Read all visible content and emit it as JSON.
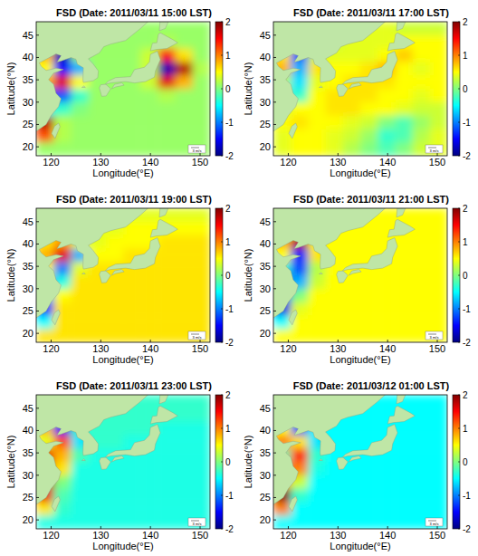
{
  "chart_data": [
    {
      "type": "heatmap",
      "title": "FSD (Date: 2011/03/11 15:00 LST)",
      "x_label": "Longitude(°E)",
      "y_label": "Latitude(°N)",
      "xlim": [
        117,
        152
      ],
      "ylim": [
        18,
        48
      ],
      "xticks": [
        120,
        130,
        140,
        150
      ],
      "yticks": [
        20,
        25,
        30,
        35,
        40,
        45
      ],
      "x": [
        118.75,
        122.25,
        125.75,
        129.25,
        132.75,
        136.25,
        139.75,
        143.25,
        146.75,
        150.25
      ],
      "y": [
        46.5,
        43.5,
        40.5,
        37.5,
        34.5,
        31.5,
        28.5,
        25.5,
        22.5,
        19.5
      ],
      "cells": [
        [
          0.1,
          0.1,
          0.1,
          0.1,
          0.1,
          0.1,
          0.1,
          0.1,
          0.1,
          0.1
        ],
        [
          0.1,
          0.1,
          0.1,
          0.1,
          0.1,
          0.1,
          0.1,
          0.2,
          0.1,
          0.1
        ],
        [
          0.8,
          -1.8,
          0.1,
          0.1,
          0.1,
          0.1,
          0.3,
          1.5,
          0.6,
          0.1
        ],
        [
          0.5,
          -1.5,
          -0.8,
          0.1,
          0.1,
          0.1,
          0.3,
          -1.8,
          1.8,
          0.2
        ],
        [
          0.8,
          1.6,
          0.5,
          0.1,
          0.1,
          0.1,
          0.3,
          1.6,
          0.8,
          0.1
        ],
        [
          -1.5,
          -1.2,
          -0.3,
          0.1,
          0.1,
          0.1,
          0.1,
          0.2,
          0.1,
          0.1
        ],
        [
          -0.5,
          -0.3,
          0,
          0.1,
          0.1,
          0.1,
          0.1,
          0.1,
          0.1,
          0.1
        ],
        [
          1.8,
          0.2,
          0.1,
          0.1,
          0.1,
          0.1,
          0.1,
          0.1,
          0.1,
          0.1
        ],
        [
          1.2,
          0.2,
          0.1,
          0.1,
          0.1,
          0.1,
          0.1,
          0.1,
          0.1,
          0.1
        ],
        [
          0.1,
          0.1,
          0.1,
          0.1,
          0.1,
          0.1,
          0.1,
          0.1,
          0.1,
          0.1
        ]
      ],
      "colorbar": {
        "range": [
          -2,
          2
        ],
        "ticks": [
          -2,
          -1,
          0,
          1,
          2
        ]
      },
      "annotations": [
        "3 m/s"
      ]
    },
    {
      "type": "heatmap",
      "title": "FSD (Date: 2011/03/11 17:00 LST)",
      "x_label": "Longitude(°E)",
      "y_label": "Latitude(°N)",
      "xlim": [
        117,
        152
      ],
      "ylim": [
        18,
        48
      ],
      "xticks": [
        120,
        130,
        140,
        150
      ],
      "yticks": [
        20,
        25,
        30,
        35,
        40,
        45
      ],
      "x": [
        118.75,
        122.25,
        125.75,
        129.25,
        132.75,
        136.25,
        139.75,
        143.25,
        146.75,
        150.25
      ],
      "y": [
        46.5,
        43.5,
        40.5,
        37.5,
        34.5,
        31.5,
        28.5,
        25.5,
        22.5,
        19.5
      ],
      "cells": [
        [
          0.4,
          0.4,
          0.4,
          0.4,
          0.4,
          0.4,
          0.4,
          0.3,
          0.3,
          0.3
        ],
        [
          0.3,
          0.3,
          0.3,
          0.3,
          0.4,
          0.4,
          0.4,
          0.5,
          0.5,
          0.5
        ],
        [
          0.6,
          -1.2,
          0.3,
          0.4,
          0.4,
          0.4,
          0.5,
          0.7,
          0.5,
          0.5
        ],
        [
          0.8,
          -0.8,
          0.6,
          0.5,
          0.5,
          0.6,
          0.8,
          0.5,
          0.4,
          0.5
        ],
        [
          0.2,
          -0.6,
          0.4,
          0.5,
          0.6,
          0.6,
          0.6,
          0.5,
          0.5,
          0.5
        ],
        [
          -0.6,
          -0.3,
          0.5,
          0.6,
          0.6,
          0.6,
          0.5,
          0.5,
          0.4,
          0.5
        ],
        [
          0.3,
          0.5,
          0.5,
          0.6,
          0.6,
          0.5,
          0.5,
          0.4,
          0.3,
          0.3
        ],
        [
          0.5,
          0.6,
          0.5,
          0.5,
          0.4,
          0.3,
          0,
          -0.2,
          0.1,
          0.3
        ],
        [
          0.4,
          0.5,
          0.5,
          0.4,
          0.3,
          0.1,
          -0.3,
          -0.2,
          0.2,
          0.4
        ],
        [
          0.4,
          0.5,
          0.5,
          0.4,
          0.2,
          0,
          -0.2,
          0,
          0.3,
          0.4
        ]
      ],
      "colorbar": {
        "range": [
          -2,
          2
        ],
        "ticks": [
          -2,
          -1,
          0,
          1,
          2
        ]
      },
      "annotations": [
        "3 m/s"
      ]
    },
    {
      "type": "heatmap",
      "title": "FSD (Date: 2011/03/11 19:00 LST)",
      "x_label": "Longitude(°E)",
      "y_label": "Latitude(°N)",
      "xlim": [
        117,
        152
      ],
      "ylim": [
        18,
        48
      ],
      "xticks": [
        120,
        130,
        140,
        150
      ],
      "yticks": [
        20,
        25,
        30,
        35,
        40,
        45
      ],
      "x": [
        118.75,
        122.25,
        125.75,
        129.25,
        132.75,
        136.25,
        139.75,
        143.25,
        146.75,
        150.25
      ],
      "y": [
        46.5,
        43.5,
        40.5,
        37.5,
        34.5,
        31.5,
        28.5,
        25.5,
        22.5,
        19.5
      ],
      "cells": [
        [
          0.4,
          0.4,
          0.4,
          0.4,
          0.4,
          0.4,
          0.4,
          0.4,
          0.4,
          0.4
        ],
        [
          0.4,
          0.4,
          0.4,
          0.4,
          0.4,
          0.5,
          0.5,
          0.5,
          0.5,
          0.5
        ],
        [
          0.6,
          0.9,
          0.4,
          0.4,
          0.5,
          0.5,
          0.5,
          0.6,
          0.6,
          0.6
        ],
        [
          0.8,
          1.6,
          -0.8,
          0.5,
          0.5,
          0.6,
          0.6,
          0.6,
          0.6,
          0.6
        ],
        [
          0.5,
          -1,
          0.4,
          0.6,
          0.6,
          0.6,
          0.6,
          0.6,
          0.6,
          0.6
        ],
        [
          -1.2,
          -0.4,
          0.6,
          0.6,
          0.6,
          0.6,
          0.6,
          0.6,
          0.6,
          0.6
        ],
        [
          -0.8,
          0.5,
          0.6,
          0.6,
          0.6,
          0.6,
          0.6,
          0.6,
          0.6,
          0.6
        ],
        [
          -1.5,
          0.6,
          0.6,
          0.6,
          0.6,
          0.6,
          0.6,
          0.6,
          0.6,
          0.6
        ],
        [
          -0.5,
          0.6,
          0.6,
          0.6,
          0.6,
          0.6,
          0.6,
          0.6,
          0.6,
          0.6
        ],
        [
          0.6,
          0.6,
          0.6,
          0.6,
          0.6,
          0.6,
          0.6,
          0.6,
          0.6,
          0.6
        ]
      ],
      "colorbar": {
        "range": [
          -2,
          2
        ],
        "ticks": [
          -2,
          -1,
          0,
          1,
          2
        ]
      },
      "annotations": [
        "3 m/s"
      ]
    },
    {
      "type": "heatmap",
      "title": "FSD (Date: 2011/03/11 21:00 LST)",
      "x_label": "Longitude(°E)",
      "y_label": "Latitude(°N)",
      "xlim": [
        117,
        152
      ],
      "ylim": [
        18,
        48
      ],
      "xticks": [
        120,
        130,
        140,
        150
      ],
      "yticks": [
        20,
        25,
        30,
        35,
        40,
        45
      ],
      "x": [
        118.75,
        122.25,
        125.75,
        129.25,
        132.75,
        136.25,
        139.75,
        143.25,
        146.75,
        150.25
      ],
      "y": [
        46.5,
        43.5,
        40.5,
        37.5,
        34.5,
        31.5,
        28.5,
        25.5,
        22.5,
        19.5
      ],
      "cells": [
        [
          0.5,
          0.5,
          0.5,
          0.5,
          0.5,
          0.5,
          0.5,
          0.5,
          0.5,
          0.5
        ],
        [
          0.5,
          0.5,
          0.5,
          0.5,
          0.5,
          0.5,
          0.5,
          0.5,
          0.5,
          0.5
        ],
        [
          0.8,
          1.8,
          0.5,
          0.5,
          0.5,
          0.5,
          0.5,
          0.5,
          0.5,
          0.5
        ],
        [
          0.5,
          -1.4,
          0.6,
          0.5,
          0.5,
          0.5,
          0.5,
          0.5,
          0.5,
          0.5
        ],
        [
          -0.3,
          -1.2,
          0.2,
          0.5,
          0.5,
          0.5,
          0.5,
          0.5,
          0.5,
          0.5
        ],
        [
          -1.6,
          -0.8,
          0.3,
          0.5,
          0.5,
          0.5,
          0.5,
          0.5,
          0.5,
          0.5
        ],
        [
          -1.2,
          0,
          0.5,
          0.5,
          0.5,
          0.5,
          0.5,
          0.5,
          0.5,
          0.5
        ],
        [
          -1.6,
          0.4,
          0.5,
          0.5,
          0.5,
          0.5,
          0.5,
          0.5,
          0.5,
          0.5
        ],
        [
          -0.5,
          0.5,
          0.5,
          0.5,
          0.5,
          0.5,
          0.5,
          0.5,
          0.5,
          0.5
        ],
        [
          0.5,
          0.5,
          0.5,
          0.5,
          0.5,
          0.5,
          0.5,
          0.5,
          0.5,
          0.5
        ]
      ],
      "colorbar": {
        "range": [
          -2,
          2
        ],
        "ticks": [
          -2,
          -1,
          0,
          1,
          2
        ]
      },
      "annotations": [
        "3 m/s"
      ]
    },
    {
      "type": "heatmap",
      "title": "FSD (Date: 2011/03/11 23:00 LST)",
      "x_label": "Longitude(°E)",
      "y_label": "Latitude(°N)",
      "xlim": [
        117,
        152
      ],
      "ylim": [
        18,
        48
      ],
      "xticks": [
        120,
        130,
        140,
        150
      ],
      "yticks": [
        20,
        25,
        30,
        35,
        40,
        45
      ],
      "x": [
        118.75,
        122.25,
        125.75,
        129.25,
        132.75,
        136.25,
        139.75,
        143.25,
        146.75,
        150.25
      ],
      "y": [
        46.5,
        43.5,
        40.5,
        37.5,
        34.5,
        31.5,
        28.5,
        25.5,
        22.5,
        19.5
      ],
      "cells": [
        [
          -0.3,
          -0.3,
          -0.3,
          -0.3,
          -0.3,
          -0.3,
          -0.3,
          -0.3,
          -0.3,
          -0.3
        ],
        [
          -0.3,
          -0.3,
          -0.3,
          -0.3,
          -0.3,
          -0.3,
          -0.3,
          -0.3,
          -0.3,
          -0.3
        ],
        [
          0.8,
          -1.5,
          -0.3,
          -0.3,
          -0.3,
          -0.3,
          -0.3,
          -0.4,
          -0.4,
          -0.4
        ],
        [
          0.4,
          1.2,
          -0.6,
          -0.3,
          -0.3,
          -0.4,
          -0.4,
          -0.4,
          -0.4,
          -0.4
        ],
        [
          1.6,
          0.8,
          -0.2,
          -0.4,
          -0.4,
          -0.4,
          -0.4,
          -0.4,
          -0.4,
          -0.4
        ],
        [
          1.6,
          0.6,
          -0.4,
          -0.4,
          -0.4,
          -0.4,
          -0.4,
          -0.4,
          -0.4,
          -0.4
        ],
        [
          1.8,
          0,
          -0.4,
          -0.4,
          -0.4,
          -0.4,
          -0.4,
          -0.4,
          -0.4,
          -0.4
        ],
        [
          1.6,
          -0.2,
          -0.4,
          -0.4,
          -0.4,
          -0.4,
          -0.4,
          -0.4,
          -0.4,
          -0.4
        ],
        [
          0.6,
          -0.3,
          -0.4,
          -0.4,
          -0.4,
          -0.4,
          -0.4,
          -0.4,
          -0.4,
          -0.4
        ],
        [
          -0.4,
          -0.4,
          -0.4,
          -0.4,
          -0.4,
          -0.4,
          -0.4,
          -0.4,
          -0.4,
          -0.4
        ]
      ],
      "colorbar": {
        "range": [
          -2,
          2
        ],
        "ticks": [
          -2,
          -1,
          0,
          1,
          2
        ]
      },
      "annotations": [
        "3 m/s"
      ]
    },
    {
      "type": "heatmap",
      "title": "FSD (Date: 2011/03/12 01:00 LST)",
      "x_label": "Longitude(°E)",
      "y_label": "Latitude(°N)",
      "xlim": [
        117,
        152
      ],
      "ylim": [
        18,
        48
      ],
      "xticks": [
        120,
        130,
        140,
        150
      ],
      "yticks": [
        20,
        25,
        30,
        35,
        40,
        45
      ],
      "x": [
        118.75,
        122.25,
        125.75,
        129.25,
        132.75,
        136.25,
        139.75,
        143.25,
        146.75,
        150.25
      ],
      "y": [
        46.5,
        43.5,
        40.5,
        37.5,
        34.5,
        31.5,
        28.5,
        25.5,
        22.5,
        19.5
      ],
      "cells": [
        [
          -0.5,
          -0.5,
          -0.5,
          -0.5,
          -0.5,
          -0.5,
          -0.5,
          -0.5,
          -0.5,
          -0.5
        ],
        [
          -0.5,
          -0.5,
          -0.5,
          -0.5,
          -0.5,
          -0.5,
          -0.5,
          -0.5,
          -0.5,
          -0.5
        ],
        [
          0.5,
          -1.2,
          -0.5,
          -0.5,
          -0.5,
          -0.5,
          -0.5,
          -0.5,
          -0.5,
          -0.5
        ],
        [
          1,
          0.6,
          -0.6,
          -0.5,
          -0.5,
          -0.5,
          -0.5,
          -0.5,
          -0.5,
          -0.5
        ],
        [
          -0.2,
          1.4,
          -0.3,
          -0.5,
          -0.5,
          -0.5,
          -0.5,
          -0.5,
          -0.5,
          -0.5
        ],
        [
          1.2,
          1,
          -0.4,
          -0.5,
          -0.5,
          -0.5,
          -0.5,
          -0.5,
          -0.5,
          -0.5
        ],
        [
          0.8,
          0.3,
          -0.5,
          -0.5,
          -0.5,
          -0.5,
          -0.5,
          -0.5,
          -0.5,
          -0.5
        ],
        [
          2,
          -0.3,
          -0.5,
          -0.5,
          -0.5,
          -0.5,
          -0.5,
          -0.5,
          -0.5,
          -0.5
        ],
        [
          1,
          -0.5,
          -0.5,
          -0.5,
          -0.5,
          -0.5,
          -0.5,
          -0.5,
          -0.5,
          -0.5
        ],
        [
          -0.5,
          -0.5,
          -0.5,
          -0.5,
          -0.5,
          -0.5,
          -0.5,
          -0.5,
          -0.5,
          -0.5
        ]
      ],
      "colorbar": {
        "range": [
          -2,
          2
        ],
        "ticks": [
          -2,
          -1,
          0,
          1,
          2
        ]
      },
      "annotations": [
        "3 m/s"
      ]
    }
  ]
}
